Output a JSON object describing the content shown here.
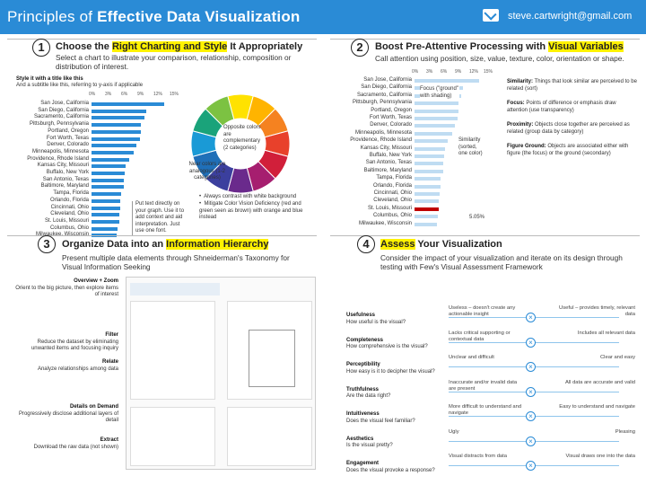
{
  "header": {
    "title_pre": "Principles of ",
    "title_bold": "Effective Data Visualization",
    "email": "steve.cartwright@gmail.com",
    "mail_icon": "mail-icon"
  },
  "p1": {
    "num": "1",
    "t1": "Choose the ",
    "t2": "Right Charting and Style",
    "t3": " It Appropriately",
    "desc": "Select a chart to illustrate your comparison, relationship, composition or distribution of interest.",
    "ctitle": "Style it with a title like this",
    "csub": "And a subtitle like this, referring to y-axis if applicable",
    "ticks": [
      "0%",
      "3%",
      "6%",
      "9%",
      "12%",
      "15%"
    ],
    "labels": [
      "San Jose, California",
      "San Diego, California",
      "Sacramento, California",
      "Pittsburgh, Pennsylvania",
      "Portland, Oregon",
      "Fort Worth, Texas",
      "Denver, Colorado",
      "Minneapolis, Minnesota",
      "Providence, Rhode Island",
      "Kansas City, Missouri",
      "Buffalo, New York",
      "San Antonio, Texas",
      "Baltimore, Maryland",
      "Tampa, Florida",
      "Orlando, Florida",
      "Cincinnati, Ohio",
      "Cleveland, Ohio",
      "St. Louis, Missouri",
      "Columbus, Ohio",
      "Milwaukee, Wisconsin"
    ],
    "values": [
      13.5,
      10.1,
      9.8,
      9.2,
      9.2,
      9,
      8.4,
      7.8,
      7,
      6.4,
      6.2,
      6,
      6,
      5.5,
      5.4,
      5.3,
      5.1,
      5.1,
      4.9,
      4.6
    ],
    "note_text": "Put text directly on your graph. Use it to add context and aid interpretation. Just use one font.",
    "note_opp": "Opposite colors are complementary (2 categories)",
    "note_near": "Near colors are analogous (1-2 categories)",
    "b1": "Always contrast with white background",
    "b2": "Mitigate Color Vision Deficiency (red and green seen as brown) with orange and blue instead"
  },
  "p2": {
    "num": "2",
    "t1": "Boost Pre-Attentive Processing with ",
    "t2": "Visual Variables",
    "desc": "Call attention using position, size, value, texture, color, orientation or shape.",
    "ticks": [
      "0%",
      "3%",
      "6%",
      "9%",
      "12%",
      "15%"
    ],
    "focus": "Focus (\"ground\" with shading)",
    "sim": "Similarity (sorted, one color)",
    "hl_val": "5.05%",
    "defs": [
      {
        "k": "Similarity",
        "v": "Things that look similar are perceived to be related (sort)"
      },
      {
        "k": "Focus",
        "v": "Points of difference or emphasis draw attention (use transparency)"
      },
      {
        "k": "Proximity",
        "v": "Objects close together are perceived as related (group data by category)"
      },
      {
        "k": "Figure Ground",
        "v": "Objects are associated either with figure (the focus) or the ground (secondary)"
      }
    ]
  },
  "p3": {
    "num": "3",
    "t1": "Organize Data into an ",
    "t2": "Information Hierarchy",
    "desc": "Present multiple data elements through Shneiderman's Taxonomy for Visual Information Seeking",
    "steps": [
      {
        "k": "Overview + Zoom",
        "v": "Orient to the big picture, then explore items of interest"
      },
      {
        "k": "Filter",
        "v": "Reduce the dataset by eliminating unwanted items and focusing inquiry"
      },
      {
        "k": "Relate",
        "v": "Analyze relationships among data"
      },
      {
        "k": "Details on Demand",
        "v": "Progressively disclose additional layers of detail"
      },
      {
        "k": "Extract",
        "v": "Download the raw data (not shown)"
      }
    ]
  },
  "p4": {
    "num": "4",
    "t1": "Assess",
    "t2": " Your Visualization",
    "desc": "Consider the impact of your visualization and iterate on its design through testing with Few's Visual Assessment Framework",
    "rows": [
      {
        "k": "Usefulness",
        "q": "How useful is the visual?",
        "l": "Useless – doesn't create any actionable insight",
        "r": "Useful – provides timely, relevant data"
      },
      {
        "k": "Completeness",
        "q": "How comprehensive is the visual?",
        "l": "Lacks critical supporting or contextual data",
        "r": "Includes all relevant data"
      },
      {
        "k": "Perceptibility",
        "q": "How easy is it to decipher the visual?",
        "l": "Unclear and difficult",
        "r": "Clear and easy"
      },
      {
        "k": "Truthfulness",
        "q": "Are the data right?",
        "l": "Inaccurate and/or invalid data are present",
        "r": "All data are accurate and valid"
      },
      {
        "k": "Intuitiveness",
        "q": "Does the visual feel familiar?",
        "l": "More difficult to understand and navigate",
        "r": "Easy to understand and navigate"
      },
      {
        "k": "Aesthetics",
        "q": "Is the visual pretty?",
        "l": "Ugly",
        "r": "Pleasing"
      },
      {
        "k": "Engagement",
        "q": "Does the visual provoke a response?",
        "l": "Visual distracts from data",
        "r": "Visual draws one into the data"
      }
    ]
  }
}
